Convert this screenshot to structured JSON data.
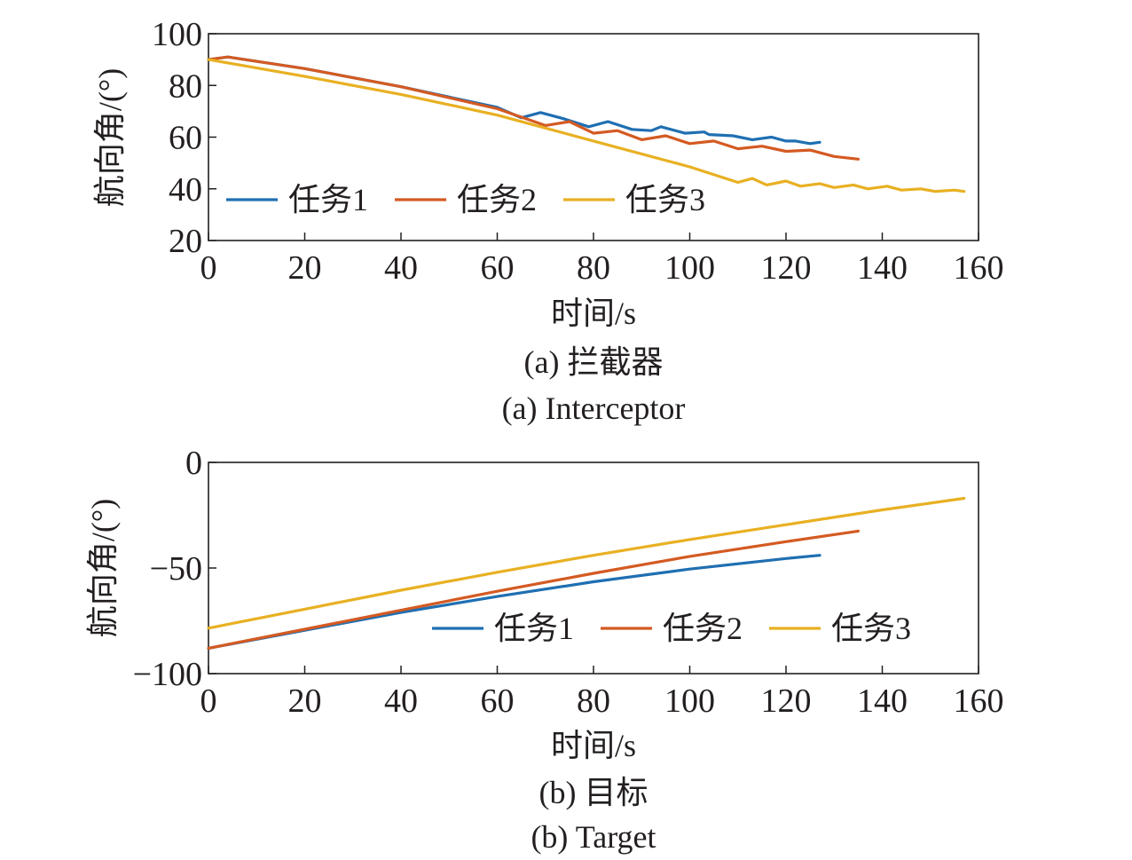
{
  "colors": {
    "series1": "#1f6fb2",
    "series2": "#d45a22",
    "series3": "#e8b022",
    "axis": "#231f20"
  },
  "chart_data": [
    {
      "type": "line",
      "caption_cn": "(a) 拦截器",
      "caption_en": "(a) Interceptor",
      "xlabel": "时间/s",
      "ylabel": "航向角/(°)",
      "xlim": [
        0,
        160
      ],
      "ylim": [
        20,
        100
      ],
      "xticks": [
        "0",
        "20",
        "40",
        "60",
        "80",
        "100",
        "120",
        "140",
        "160"
      ],
      "yticks": [
        "20",
        "40",
        "60",
        "80",
        "100"
      ],
      "legend_placement": "lower-left",
      "grid": false,
      "series": [
        {
          "name": "任务1",
          "color": "#1f6fb2",
          "x": [
            0,
            4,
            20,
            40,
            60,
            65,
            69,
            74,
            79,
            83,
            88,
            92,
            94,
            99,
            103,
            104,
            109,
            113,
            117,
            120,
            122,
            125,
            127
          ],
          "y": [
            90,
            91,
            86.5,
            79.5,
            71.5,
            67.5,
            69.5,
            67,
            64,
            66,
            63,
            62.5,
            64,
            61.5,
            62,
            61,
            60.5,
            59,
            60,
            58.5,
            58.5,
            57.5,
            58
          ]
        },
        {
          "name": "任务2",
          "color": "#d45a22",
          "x": [
            0,
            4,
            20,
            40,
            60,
            70,
            75,
            80,
            85,
            90,
            95,
            100,
            105,
            110,
            115,
            120,
            125,
            130,
            135
          ],
          "y": [
            90,
            91,
            86.5,
            79.5,
            71,
            64.5,
            66,
            61.5,
            62.5,
            59,
            60.5,
            57.5,
            58.5,
            55.5,
            56.5,
            54.5,
            55,
            52.5,
            51.5
          ]
        },
        {
          "name": "任务3",
          "color": "#e8b022",
          "x": [
            0,
            20,
            40,
            60,
            80,
            100,
            110,
            113,
            116,
            120,
            123,
            127,
            130,
            134,
            137,
            141,
            144,
            148,
            151,
            155,
            157
          ],
          "y": [
            90,
            83.5,
            76.5,
            68.5,
            58.5,
            48.5,
            42.5,
            44,
            41.5,
            43,
            41,
            42,
            40.5,
            41.5,
            40,
            41,
            39.5,
            40,
            39,
            39.5,
            39
          ]
        }
      ]
    },
    {
      "type": "line",
      "caption_cn": "(b) 目标",
      "caption_en": "(b) Target",
      "xlabel": "时间/s",
      "ylabel": "航向角/(°)",
      "xlim": [
        0,
        160
      ],
      "ylim": [
        -100,
        0
      ],
      "xticks": [
        "0",
        "20",
        "40",
        "60",
        "80",
        "100",
        "120",
        "140",
        "160"
      ],
      "yticks": [
        "−100",
        "−50",
        "0"
      ],
      "legend_placement": "lower-right",
      "grid": false,
      "series": [
        {
          "name": "任务1",
          "color": "#1f6fb2",
          "x": [
            0,
            20,
            40,
            60,
            80,
            100,
            120,
            127
          ],
          "y": [
            -88,
            -79.5,
            -71,
            -63.5,
            -56.5,
            -50.5,
            -45.5,
            -44
          ]
        },
        {
          "name": "任务2",
          "color": "#d45a22",
          "x": [
            0,
            20,
            40,
            60,
            80,
            100,
            120,
            135
          ],
          "y": [
            -88,
            -79,
            -70,
            -61,
            -52.5,
            -44.5,
            -37.5,
            -32.5
          ]
        },
        {
          "name": "任务3",
          "color": "#e8b022",
          "x": [
            0,
            20,
            40,
            60,
            80,
            100,
            120,
            140,
            157
          ],
          "y": [
            -78.5,
            -69.5,
            -60.5,
            -52,
            -44,
            -36.5,
            -29.5,
            -22.5,
            -17
          ]
        }
      ]
    }
  ]
}
